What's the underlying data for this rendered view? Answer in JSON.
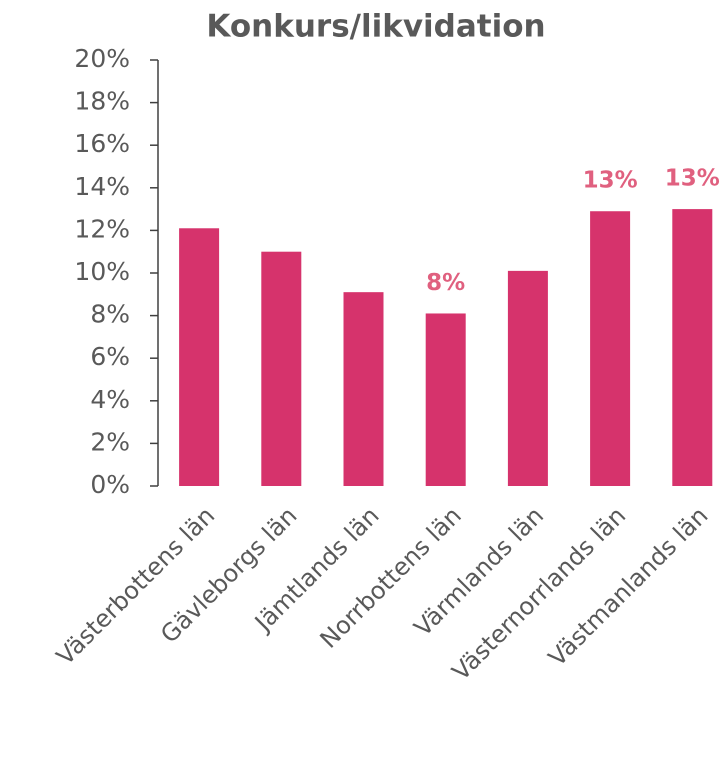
{
  "chart_data": {
    "type": "bar",
    "title": "Konkurs/likvidation",
    "categories": [
      "Västerbottens län",
      "Gävleborgs län",
      "Jämtlands län",
      "Norrbottens län",
      "Värmlands län",
      "Västernorrlands län",
      "Västmanlands län"
    ],
    "values": [
      12.1,
      11.0,
      9.1,
      8.1,
      10.1,
      12.9,
      13.0
    ],
    "value_labels": [
      null,
      null,
      null,
      "8%",
      null,
      "13%",
      "13%"
    ],
    "color": "#d6336c",
    "label_color": "#e0607f",
    "ylim": [
      0,
      20
    ],
    "yticks": [
      {
        "value": 0,
        "label": "0%"
      },
      {
        "value": 2,
        "label": "2%"
      },
      {
        "value": 4,
        "label": "4%"
      },
      {
        "value": 6,
        "label": "6%"
      },
      {
        "value": 8,
        "label": "8%"
      },
      {
        "value": 10,
        "label": "10%"
      },
      {
        "value": 12,
        "label": "12%"
      },
      {
        "value": 14,
        "label": "14%"
      },
      {
        "value": 16,
        "label": "16%"
      },
      {
        "value": 18,
        "label": "18%"
      },
      {
        "value": 20,
        "label": "20%"
      }
    ],
    "grid": false
  }
}
